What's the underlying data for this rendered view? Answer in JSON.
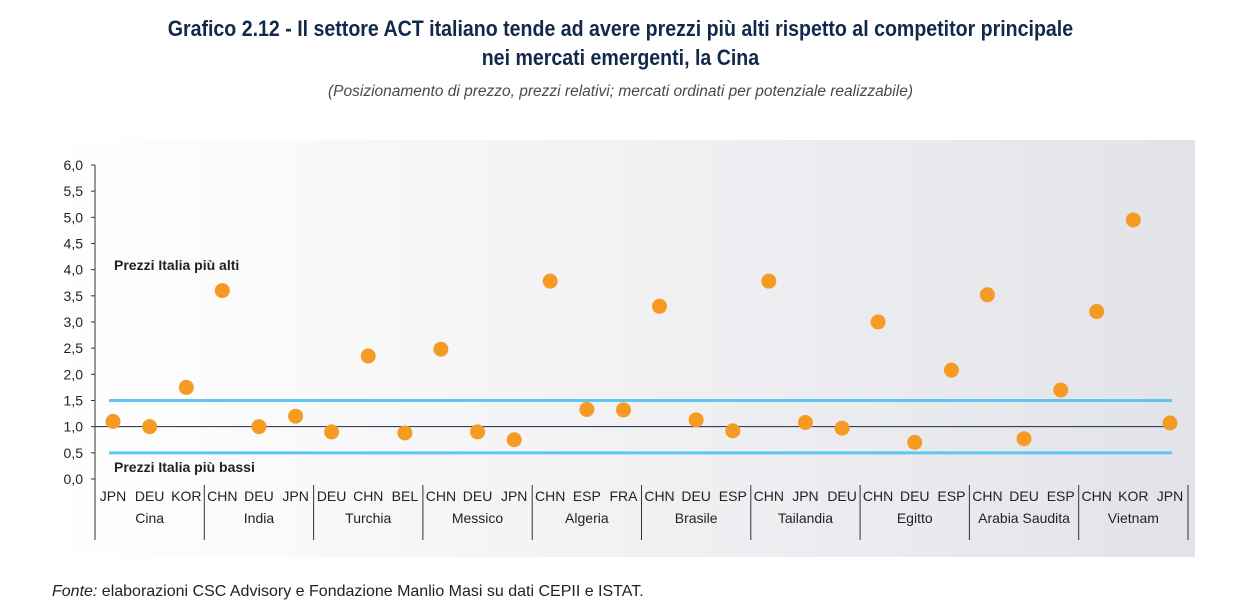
{
  "title_line1": "Grafico 2.12 - Il settore ACT italiano tende ad avere prezzi più alti rispetto al competitor principale",
  "title_line2": "nei mercati emergenti, la Cina",
  "subtitle": "(Posizionamento di prezzo, prezzi relativi; mercati ordinati per potenziale realizzabile)",
  "source_label": "Fonte:",
  "source_text": " elaborazioni CSC Advisory e Fondazione Manlio Masi su dati CEPII e ISTAT.",
  "colors": {
    "marker": "#f59b23",
    "threshold": "#5fc7ee",
    "axis": "#333333",
    "title": "#13294b"
  },
  "chart_data": {
    "type": "scatter",
    "ylim": [
      0,
      6
    ],
    "yticks": [
      "0,0",
      "0,5",
      "1,0",
      "1,5",
      "2,0",
      "2,5",
      "3,0",
      "3,5",
      "4,0",
      "4,5",
      "5,0",
      "5,5",
      "6,0"
    ],
    "annotations": {
      "upper": "Prezzi Italia più alti",
      "lower": "Prezzi Italia più bassi"
    },
    "threshold_lines": [
      1.0,
      1.5,
      0.5
    ],
    "groups": [
      {
        "market": "Cina",
        "competitors": [
          "JPN",
          "DEU",
          "KOR"
        ],
        "values": [
          1.1,
          1.0,
          1.75
        ]
      },
      {
        "market": "India",
        "competitors": [
          "CHN",
          "DEU",
          "JPN"
        ],
        "values": [
          3.6,
          1.0,
          1.2
        ]
      },
      {
        "market": "Turchia",
        "competitors": [
          "DEU",
          "CHN",
          "BEL"
        ],
        "values": [
          0.9,
          2.35,
          0.88
        ]
      },
      {
        "market": "Messico",
        "competitors": [
          "CHN",
          "DEU",
          "JPN"
        ],
        "values": [
          2.48,
          0.9,
          0.75
        ]
      },
      {
        "market": "Algeria",
        "competitors": [
          "CHN",
          "ESP",
          "FRA"
        ],
        "values": [
          3.78,
          1.33,
          1.32
        ]
      },
      {
        "market": "Brasile",
        "competitors": [
          "CHN",
          "DEU",
          "ESP"
        ],
        "values": [
          3.3,
          1.13,
          0.92
        ]
      },
      {
        "market": "Tailandia",
        "competitors": [
          "CHN",
          "JPN",
          "DEU"
        ],
        "values": [
          3.78,
          1.08,
          0.97
        ]
      },
      {
        "market": "Egitto",
        "competitors": [
          "CHN",
          "DEU",
          "ESP"
        ],
        "values": [
          3.0,
          0.7,
          2.08
        ]
      },
      {
        "market": "Arabia Saudita",
        "competitors": [
          "CHN",
          "DEU",
          "ESP"
        ],
        "values": [
          3.52,
          0.77,
          1.7
        ]
      },
      {
        "market": "Vietnam",
        "competitors": [
          "CHN",
          "KOR",
          "JPN"
        ],
        "values": [
          3.2,
          4.95,
          1.07
        ]
      }
    ]
  }
}
